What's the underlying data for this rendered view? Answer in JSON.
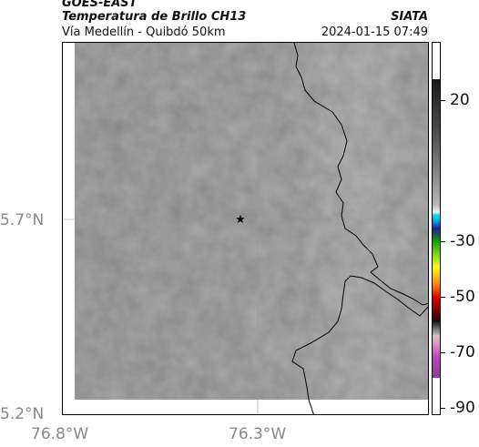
{
  "header": {
    "satellite": "GOES-EAST",
    "product": "Temperatura de Brillo CH13",
    "region": "Vía Medellín - Quibdó 50km",
    "agency": "SIATA",
    "timestamp": "2024-01-15 07:49"
  },
  "axes": {
    "y_ticks": [
      "5.7°N",
      "5.2°N"
    ],
    "x_ticks": [
      "76.8°W",
      "76.3°W"
    ]
  },
  "colorbar": {
    "labels": [
      "20",
      "-30",
      "-50",
      "-70",
      "-90"
    ]
  },
  "marker": {
    "symbol": "★",
    "name": "site-star"
  }
}
